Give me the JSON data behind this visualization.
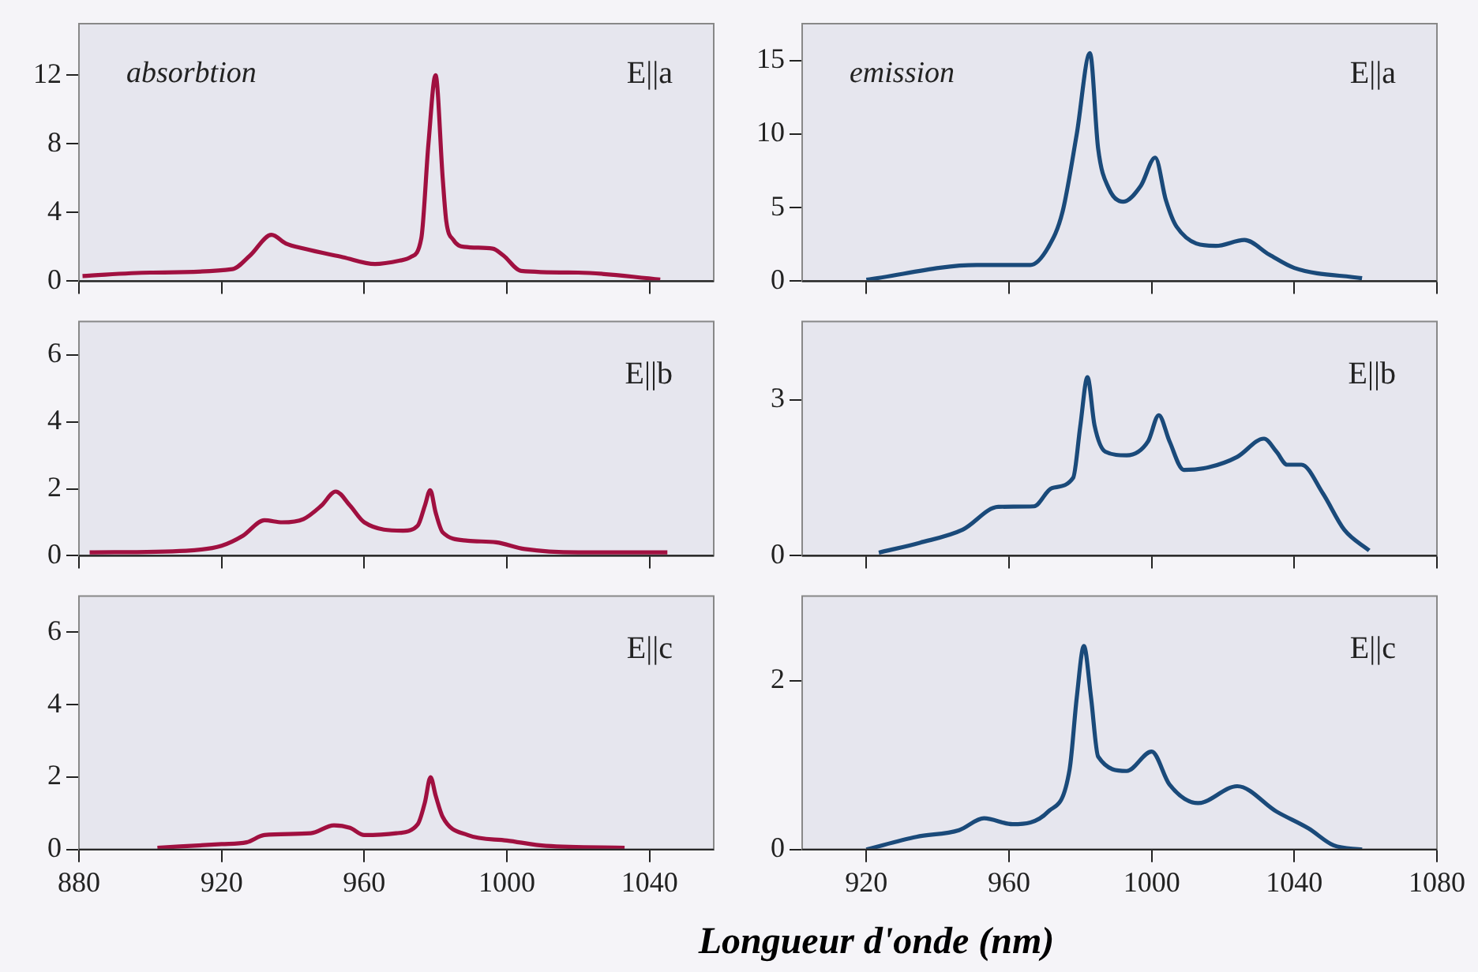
{
  "chart_data": [
    {
      "type": "line",
      "annotations": [
        "absorbtion",
        "E||a"
      ],
      "xlim": [
        880,
        1058
      ],
      "xticks": [
        880,
        920,
        960,
        1000,
        1040
      ],
      "ylim": [
        0,
        15
      ],
      "yticks": [
        0,
        4,
        8,
        12
      ],
      "tick_labels": "y",
      "marker": "none",
      "x": [
        881,
        900,
        923,
        928,
        934,
        938,
        943,
        954,
        963,
        970,
        973,
        976,
        978,
        980,
        982,
        983,
        985,
        988,
        996,
        999,
        1004,
        1020,
        1043
      ],
      "series": [
        {
          "color": "#a01040",
          "values": [
            0.3,
            0.5,
            0.7,
            1.5,
            2.7,
            2.2,
            1.9,
            1.4,
            1.0,
            1.2,
            1.4,
            2.5,
            8.0,
            12.0,
            6.0,
            3.5,
            2.4,
            2.0,
            1.9,
            1.5,
            0.6,
            0.5,
            0.1
          ]
        }
      ]
    },
    {
      "type": "line",
      "annotations": [
        "emission",
        "E||a"
      ],
      "xlim": [
        902,
        1080
      ],
      "xticks": [
        920,
        960,
        1000,
        1040,
        1080
      ],
      "ylim": [
        0,
        17.5
      ],
      "yticks": [
        0,
        5,
        10,
        15
      ],
      "tick_labels": "y",
      "marker": "none",
      "x": [
        920,
        951,
        966,
        971,
        975,
        979,
        982.7,
        985,
        988,
        992,
        997,
        1001,
        1004,
        1007,
        1018,
        1026,
        1033,
        1040,
        1059
      ],
      "series": [
        {
          "color": "#1a4a7a",
          "values": [
            0.1,
            1.1,
            1.1,
            2.3,
            4.7,
            10.0,
            15.5,
            9.0,
            6.3,
            5.4,
            6.5,
            8.4,
            5.5,
            3.7,
            2.4,
            2.8,
            1.8,
            0.9,
            0.2
          ]
        }
      ]
    },
    {
      "type": "line",
      "annotations": [
        "E||b"
      ],
      "xlim": [
        880,
        1058
      ],
      "xticks": [
        880,
        920,
        960,
        1000,
        1040
      ],
      "ylim": [
        0,
        7
      ],
      "yticks": [
        0,
        2,
        4,
        6
      ],
      "tick_labels": "y",
      "marker": "none",
      "x": [
        883,
        910,
        920,
        926,
        932,
        937,
        943,
        948,
        952,
        956,
        960,
        971,
        975,
        977,
        978.5,
        980,
        982,
        989,
        997,
        1005,
        1020,
        1045
      ],
      "series": [
        {
          "color": "#a01040",
          "values": [
            0.1,
            0.15,
            0.3,
            0.6,
            1.06,
            1.0,
            1.1,
            1.5,
            1.92,
            1.5,
            1.0,
            0.75,
            0.9,
            1.5,
            1.96,
            1.3,
            0.7,
            0.45,
            0.4,
            0.2,
            0.1,
            0.1
          ]
        }
      ]
    },
    {
      "type": "line",
      "annotations": [
        "E||b"
      ],
      "xlim": [
        902,
        1080
      ],
      "xticks": [
        920,
        960,
        1000,
        1040,
        1080
      ],
      "ylim": [
        0,
        4.5
      ],
      "yticks": [
        0,
        3
      ],
      "tick_labels": "y",
      "marker": "none",
      "x": [
        923.5,
        935,
        947,
        957,
        967,
        972,
        978,
        980,
        982,
        984,
        987,
        993,
        999,
        1002,
        1005,
        1009,
        1016,
        1024,
        1031.5,
        1035,
        1038,
        1042,
        1048,
        1054,
        1061
      ],
      "series": [
        {
          "color": "#1a4a7a",
          "values": [
            0.06,
            0.25,
            0.5,
            0.94,
            0.95,
            1.3,
            1.5,
            2.5,
            3.43,
            2.5,
            2.0,
            1.93,
            2.2,
            2.7,
            2.2,
            1.65,
            1.7,
            1.9,
            2.25,
            2.0,
            1.75,
            1.75,
            1.2,
            0.5,
            0.1
          ]
        }
      ]
    },
    {
      "type": "line",
      "annotations": [
        "E||c"
      ],
      "xlim": [
        880,
        1058
      ],
      "xticks": [
        880,
        920,
        960,
        1000,
        1040
      ],
      "ylim": [
        0,
        7
      ],
      "yticks": [
        0,
        2,
        4,
        6
      ],
      "marker": "none",
      "x": [
        902,
        920,
        927,
        932,
        945,
        951.5,
        956,
        960,
        969,
        975,
        977,
        978.6,
        980,
        982,
        989,
        1000,
        1011,
        1033
      ],
      "series": [
        {
          "color": "#a01040",
          "values": [
            0.05,
            0.15,
            0.2,
            0.4,
            0.45,
            0.67,
            0.6,
            0.4,
            0.45,
            0.7,
            1.3,
            2.0,
            1.5,
            0.9,
            0.4,
            0.25,
            0.1,
            0.05
          ]
        }
      ]
    },
    {
      "type": "line",
      "annotations": [
        "E||c"
      ],
      "xlabel": "Longueur d'onde (nm)",
      "xlim": [
        902,
        1080
      ],
      "xticks": [
        920,
        960,
        1000,
        1040,
        1080
      ],
      "ylim": [
        0,
        3
      ],
      "yticks": [
        0,
        2
      ],
      "marker": "none",
      "x": [
        920,
        934,
        946,
        953,
        961,
        971,
        977,
        979,
        981,
        983,
        985,
        993,
        1000,
        1005,
        1013,
        1024,
        1035,
        1044,
        1051,
        1059
      ],
      "series": [
        {
          "color": "#1a4a7a",
          "values": [
            0.0,
            0.15,
            0.23,
            0.37,
            0.3,
            0.45,
            0.95,
            1.8,
            2.41,
            1.8,
            1.1,
            0.93,
            1.16,
            0.77,
            0.55,
            0.75,
            0.45,
            0.25,
            0.05,
            0.0
          ]
        }
      ]
    }
  ]
}
